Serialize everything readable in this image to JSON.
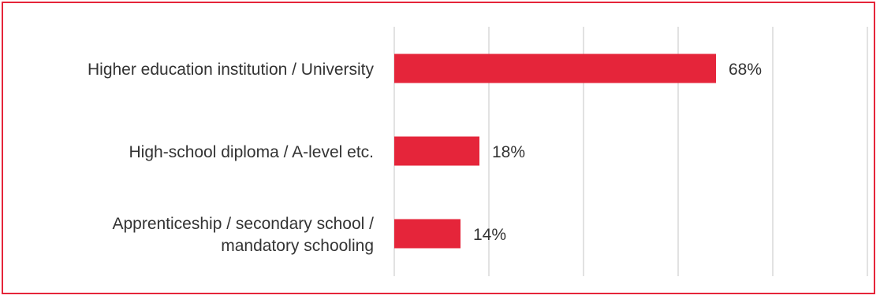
{
  "chart_data": {
    "type": "bar",
    "orientation": "horizontal",
    "categories": [
      "Higher education institution / University",
      "High-school diploma / A-level etc.",
      "Apprenticeship / secondary school / mandatory schooling"
    ],
    "category_lines": [
      [
        "Higher education institution / University"
      ],
      [
        "High-school diploma / A-level etc."
      ],
      [
        "Apprenticeship / secondary school /",
        "mandatory schooling"
      ]
    ],
    "values": [
      68,
      18,
      14
    ],
    "value_labels": [
      "68%",
      "18%",
      "14%"
    ],
    "xlim": [
      0,
      100
    ],
    "grid": true,
    "bar_color": "#e5253a",
    "frame_color": "#e5253a",
    "grid_color": "#d9d9d9",
    "text_color": "#333333"
  }
}
